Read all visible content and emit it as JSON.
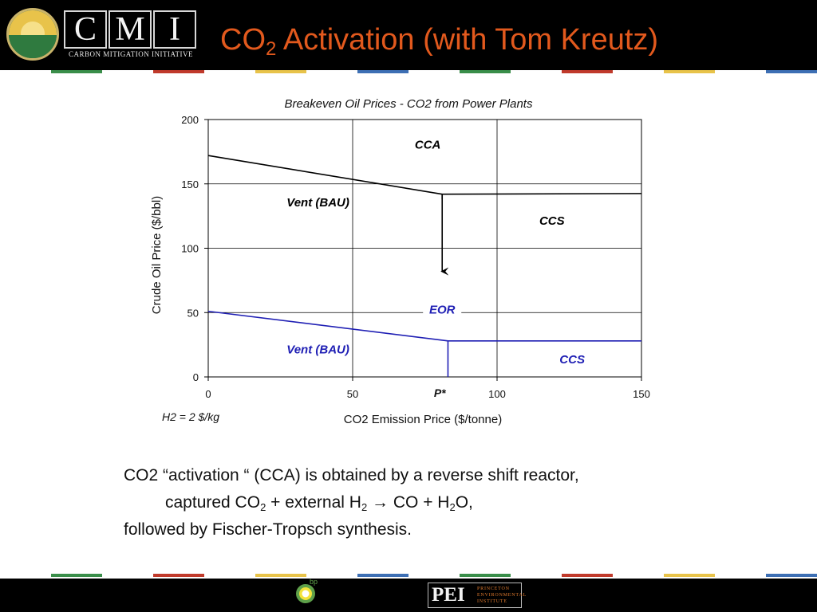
{
  "header": {
    "logo_letters": [
      "C",
      "M",
      "I"
    ],
    "logo_subtitle": "CARBON MITIGATION INITIATIVE",
    "title_main": "CO",
    "title_sub": "2",
    "title_rest": " Activation (with Tom Kreutz)",
    "title_color": "#e2591d"
  },
  "colors": {
    "black_line": "#000000",
    "blue_line": "#1f1fb4",
    "grid": "#000000",
    "stripe": [
      "#3a8e4a",
      "#c03a2b",
      "#e8c34a",
      "#3d6fb4"
    ]
  },
  "chart_data": {
    "type": "line",
    "title": "Breakeven Oil Prices - CO2 from Power Plants",
    "xlabel": "CO2 Emission Price ($/tonne)",
    "ylabel": "Crude Oil Price ($/bbl)",
    "xlim": [
      0,
      150
    ],
    "ylim": [
      0,
      200
    ],
    "xticks": [
      "0",
      "50",
      "100",
      "150"
    ],
    "yticks": [
      "0",
      "50",
      "100",
      "150",
      "200"
    ],
    "grid": true,
    "series": [
      {
        "color": "black",
        "segments": [
          {
            "x": [
              0,
              81
            ],
            "y": [
              172,
              142
            ]
          },
          {
            "x": [
              81,
              150
            ],
            "y": [
              142,
              142.5
            ]
          },
          {
            "x": [
              81,
              81
            ],
            "y": [
              142,
              138
            ]
          }
        ]
      },
      {
        "color": "blue",
        "segments": [
          {
            "x": [
              0,
              83
            ],
            "y": [
              51,
              28
            ]
          },
          {
            "x": [
              83,
              150
            ],
            "y": [
              28,
              28
            ]
          },
          {
            "x": [
              83,
              83
            ],
            "y": [
              28,
              0
            ]
          }
        ]
      }
    ],
    "arrow": {
      "x": 81,
      "y_from": 142,
      "y_to": 82
    },
    "region_labels": [
      {
        "text": "CCA",
        "color": "black"
      },
      {
        "text": "Vent (BAU)",
        "color": "black"
      },
      {
        "text": "CCS",
        "color": "black"
      },
      {
        "text": "EOR",
        "color": "blue"
      },
      {
        "text": "Vent (BAU)",
        "color": "blue"
      },
      {
        "text": "CCS",
        "color": "blue"
      }
    ],
    "annotations": [
      "P*",
      "H2 = 2 $/kg"
    ]
  },
  "body_text": {
    "line1": "CO2 “activation “ (CCA) is obtained by a reverse shift reactor,",
    "line2_a": "captured CO",
    "line2_a_sub": "2",
    "line2_b": " + external H",
    "line2_b_sub": "2",
    "line2_arrow": "→",
    "line2_c": " CO + H",
    "line2_c_sub": "2",
    "line2_d": "O,",
    "line3": "followed by Fischer-Tropsch synthesis."
  },
  "footer": {
    "bp_label": "bp",
    "pei_main": "PEI",
    "pei_side": [
      "PRINCETON",
      "ENVIRONMENTAL",
      "INSTITUTE"
    ]
  }
}
